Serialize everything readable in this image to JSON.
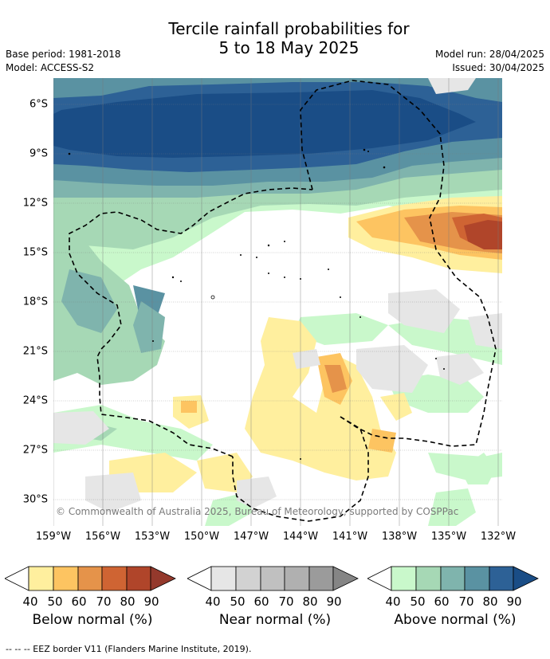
{
  "title_line1": "Tercile rainfall probabilities for",
  "title_line2": "5 to 18 May 2025",
  "base_period": "Base period: 1981-2018",
  "model": "Model: ACCESS-S2",
  "model_run": "Model run: 28/04/2025",
  "issued": "Issued: 30/04/2025",
  "copyright": "© Commonwealth of Australia 2025, Bureau of Meteorology, supported by COSPPac",
  "lat_labels": [
    "6°S",
    "9°S",
    "12°S",
    "15°S",
    "18°S",
    "21°S",
    "24°S",
    "27°S",
    "30°S"
  ],
  "lon_labels": [
    "159°W",
    "156°W",
    "153°W",
    "150°W",
    "147°W",
    "144°W",
    "141°W",
    "138°W",
    "135°W",
    "132°W"
  ],
  "legends": [
    {
      "title": "Below normal (%)",
      "ticks": [
        "40",
        "50",
        "60",
        "70",
        "80",
        "90"
      ],
      "colors": [
        "#ffef9e",
        "#fdc461",
        "#e5934a",
        "#cf6433",
        "#b0452a",
        "#94392c"
      ]
    },
    {
      "title": "Near normal (%)",
      "ticks": [
        "40",
        "50",
        "60",
        "70",
        "80",
        "90"
      ],
      "colors": [
        "#e6e6e6",
        "#d2d2d2",
        "#c0c0c0",
        "#b0b0b0",
        "#9b9b9b",
        "#858585"
      ]
    },
    {
      "title": "Above normal (%)",
      "ticks": [
        "40",
        "50",
        "60",
        "70",
        "80",
        "90"
      ],
      "colors": [
        "#c9f8cb",
        "#a6d8b5",
        "#7fb4ad",
        "#5a92a2",
        "#2d6196",
        "#1a4d86"
      ]
    }
  ],
  "footnote": "--  --  -- EEZ border V11 (Flanders Marine Institute, 2019)."
}
